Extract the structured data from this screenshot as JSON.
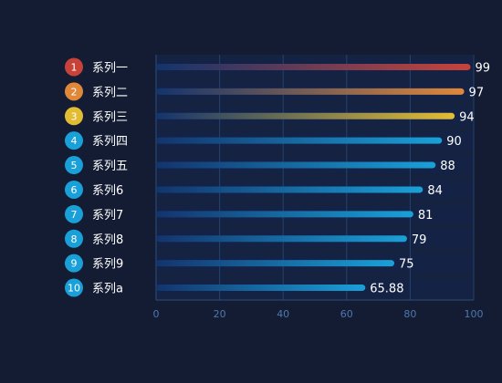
{
  "chart_data": {
    "type": "bar",
    "orientation": "horizontal",
    "title": "",
    "xlabel": "",
    "ylabel": "",
    "categories": [
      "系列一",
      "系列二",
      "系列三",
      "系列四",
      "系列五",
      "系列6",
      "系列7",
      "系列8",
      "系列9",
      "系列a"
    ],
    "ranks": [
      "1",
      "2",
      "3",
      "4",
      "5",
      "6",
      "7",
      "8",
      "9",
      "10"
    ],
    "values": [
      99,
      97,
      94,
      90,
      88,
      84,
      81,
      79,
      75,
      65.88
    ],
    "value_labels": [
      "99",
      "97",
      "94",
      "90",
      "88",
      "84",
      "81",
      "79",
      "75",
      "65.88"
    ],
    "xlim": [
      0,
      100
    ],
    "xticks": [
      "0",
      "20",
      "40",
      "60",
      "80",
      "100"
    ],
    "grid": true,
    "colors": {
      "background": "#131c33",
      "rank_1": "#c7433a",
      "rank_2": "#e0883a",
      "rank_3": "#e2bd34",
      "rank_other": "#1aa0d8",
      "bar_start": "#13346d",
      "axis": "#2c4f7f",
      "tick_text": "#4f78ad"
    }
  }
}
